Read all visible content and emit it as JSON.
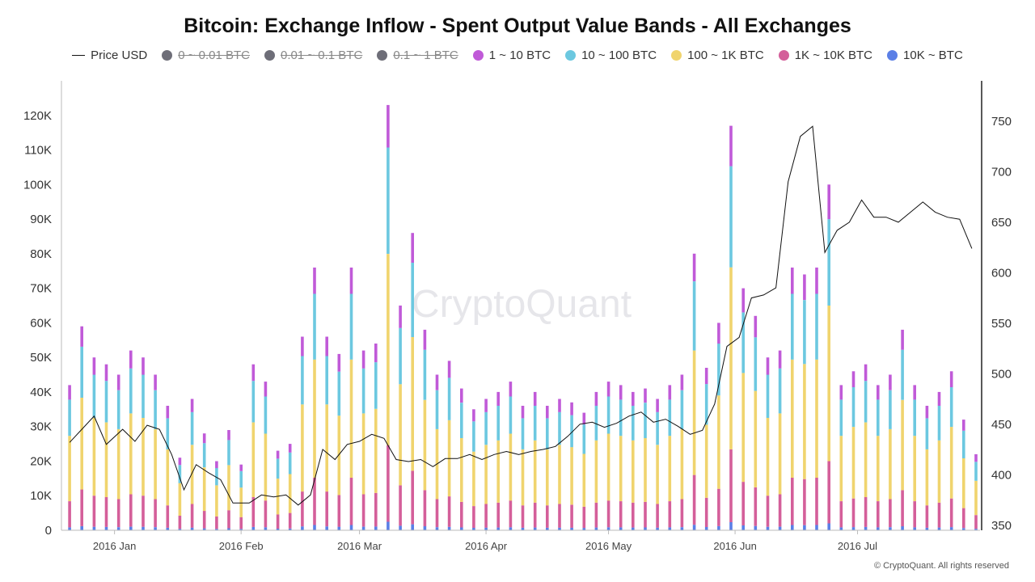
{
  "chart_data": {
    "type": "bar",
    "title": "Bitcoin: Exchange Inflow - Spent Output Value Bands - All Exchanges",
    "stacked": true,
    "watermark": "CryptoQuant",
    "copyright": "© CryptoQuant. All rights reserved",
    "legend_placement": "top",
    "grid": false,
    "x_range": [
      "2015-12-19",
      "2016-07-31"
    ],
    "x_ticks": [
      {
        "date": "2016-01-01",
        "label": "2016 Jan"
      },
      {
        "date": "2016-02-01",
        "label": "2016 Feb"
      },
      {
        "date": "2016-03-01",
        "label": "2016 Mar"
      },
      {
        "date": "2016-04-01",
        "label": "2016 Apr"
      },
      {
        "date": "2016-05-01",
        "label": "2016 May"
      },
      {
        "date": "2016-06-01",
        "label": "2016 Jun"
      },
      {
        "date": "2016-07-01",
        "label": "2016 Jul"
      }
    ],
    "y_left": {
      "range": [
        0,
        130000
      ],
      "ticks": [
        0,
        10000,
        20000,
        30000,
        40000,
        50000,
        60000,
        70000,
        80000,
        90000,
        100000,
        110000,
        120000
      ],
      "tick_labels": [
        "0",
        "10K",
        "20K",
        "30K",
        "40K",
        "50K",
        "60K",
        "70K",
        "80K",
        "90K",
        "100K",
        "110K",
        "120K"
      ]
    },
    "y_right": {
      "range": [
        345,
        790
      ],
      "ticks": [
        350,
        400,
        450,
        500,
        550,
        600,
        650,
        700,
        750
      ],
      "tick_labels": [
        "350",
        "400",
        "450",
        "500",
        "550",
        "600",
        "650",
        "700",
        "750"
      ]
    },
    "legend": [
      {
        "name": "Price USD",
        "kind": "line",
        "color": "#111111",
        "visible": true
      },
      {
        "name": "0 ~ 0.01 BTC",
        "kind": "dot",
        "color": "#6e6e78",
        "visible": false
      },
      {
        "name": "0.01 ~ 0.1 BTC",
        "kind": "dot",
        "color": "#6e6e78",
        "visible": false
      },
      {
        "name": "0.1 ~ 1 BTC",
        "kind": "dot",
        "color": "#6e6e78",
        "visible": false
      },
      {
        "name": "1 ~ 10 BTC",
        "kind": "dot",
        "color": "#c05ad8",
        "visible": true
      },
      {
        "name": "10 ~ 100 BTC",
        "kind": "dot",
        "color": "#6cc8e0",
        "visible": true
      },
      {
        "name": "100 ~ 1K BTC",
        "kind": "dot",
        "color": "#f0d46e",
        "visible": true
      },
      {
        "name": "1K ~ 10K BTC",
        "kind": "dot",
        "color": "#d45f9a",
        "visible": true
      },
      {
        "name": "10K ~ BTC",
        "kind": "dot",
        "color": "#5b7fe6",
        "visible": true
      }
    ],
    "totals": [
      {
        "date": "2015-12-21",
        "total": 42000
      },
      {
        "date": "2015-12-24",
        "total": 59000
      },
      {
        "date": "2015-12-27",
        "total": 50000
      },
      {
        "date": "2015-12-30",
        "total": 48000
      },
      {
        "date": "2016-01-02",
        "total": 45000
      },
      {
        "date": "2016-01-05",
        "total": 52000
      },
      {
        "date": "2016-01-08",
        "total": 50000
      },
      {
        "date": "2016-01-11",
        "total": 45000
      },
      {
        "date": "2016-01-14",
        "total": 36000
      },
      {
        "date": "2016-01-17",
        "total": 21000
      },
      {
        "date": "2016-01-20",
        "total": 38000
      },
      {
        "date": "2016-01-23",
        "total": 28000
      },
      {
        "date": "2016-01-26",
        "total": 20000
      },
      {
        "date": "2016-01-29",
        "total": 29000
      },
      {
        "date": "2016-02-01",
        "total": 19000
      },
      {
        "date": "2016-02-04",
        "total": 48000
      },
      {
        "date": "2016-02-07",
        "total": 43000
      },
      {
        "date": "2016-02-10",
        "total": 23000
      },
      {
        "date": "2016-02-13",
        "total": 25000
      },
      {
        "date": "2016-02-16",
        "total": 56000
      },
      {
        "date": "2016-02-19",
        "total": 76000
      },
      {
        "date": "2016-02-22",
        "total": 56000
      },
      {
        "date": "2016-02-25",
        "total": 51000
      },
      {
        "date": "2016-02-28",
        "total": 76000
      },
      {
        "date": "2016-03-02",
        "total": 52000
      },
      {
        "date": "2016-03-05",
        "total": 54000
      },
      {
        "date": "2016-03-08",
        "total": 123000
      },
      {
        "date": "2016-03-11",
        "total": 65000
      },
      {
        "date": "2016-03-14",
        "total": 86000
      },
      {
        "date": "2016-03-17",
        "total": 58000
      },
      {
        "date": "2016-03-20",
        "total": 45000
      },
      {
        "date": "2016-03-23",
        "total": 49000
      },
      {
        "date": "2016-03-26",
        "total": 41000
      },
      {
        "date": "2016-03-29",
        "total": 35000
      },
      {
        "date": "2016-04-01",
        "total": 38000
      },
      {
        "date": "2016-04-04",
        "total": 40000
      },
      {
        "date": "2016-04-07",
        "total": 43000
      },
      {
        "date": "2016-04-10",
        "total": 36000
      },
      {
        "date": "2016-04-13",
        "total": 40000
      },
      {
        "date": "2016-04-16",
        "total": 36000
      },
      {
        "date": "2016-04-19",
        "total": 38000
      },
      {
        "date": "2016-04-22",
        "total": 37000
      },
      {
        "date": "2016-04-25",
        "total": 34000
      },
      {
        "date": "2016-04-28",
        "total": 40000
      },
      {
        "date": "2016-05-01",
        "total": 43000
      },
      {
        "date": "2016-05-04",
        "total": 42000
      },
      {
        "date": "2016-05-07",
        "total": 40000
      },
      {
        "date": "2016-05-10",
        "total": 41000
      },
      {
        "date": "2016-05-13",
        "total": 38000
      },
      {
        "date": "2016-05-16",
        "total": 42000
      },
      {
        "date": "2016-05-19",
        "total": 45000
      },
      {
        "date": "2016-05-22",
        "total": 80000
      },
      {
        "date": "2016-05-25",
        "total": 47000
      },
      {
        "date": "2016-05-28",
        "total": 60000
      },
      {
        "date": "2016-05-31",
        "total": 117000
      },
      {
        "date": "2016-06-03",
        "total": 70000
      },
      {
        "date": "2016-06-06",
        "total": 62000
      },
      {
        "date": "2016-06-09",
        "total": 50000
      },
      {
        "date": "2016-06-12",
        "total": 52000
      },
      {
        "date": "2016-06-15",
        "total": 76000
      },
      {
        "date": "2016-06-18",
        "total": 74000
      },
      {
        "date": "2016-06-21",
        "total": 76000
      },
      {
        "date": "2016-06-24",
        "total": 100000
      },
      {
        "date": "2016-06-27",
        "total": 42000
      },
      {
        "date": "2016-06-30",
        "total": 46000
      },
      {
        "date": "2016-07-03",
        "total": 48000
      },
      {
        "date": "2016-07-06",
        "total": 42000
      },
      {
        "date": "2016-07-09",
        "total": 45000
      },
      {
        "date": "2016-07-12",
        "total": 58000
      },
      {
        "date": "2016-07-15",
        "total": 42000
      },
      {
        "date": "2016-07-18",
        "total": 36000
      },
      {
        "date": "2016-07-21",
        "total": 40000
      },
      {
        "date": "2016-07-24",
        "total": 46000
      },
      {
        "date": "2016-07-27",
        "total": 32000
      },
      {
        "date": "2016-07-30",
        "total": 22000
      }
    ],
    "band_share_order": [
      "10K ~ BTC",
      "1K ~ 10K BTC",
      "100 ~ 1K BTC",
      "10 ~ 100 BTC",
      "1 ~ 10 BTC"
    ],
    "band_share": [
      0.02,
      0.18,
      0.45,
      0.25,
      0.1
    ],
    "price": [
      {
        "date": "2015-12-21",
        "price": 432
      },
      {
        "date": "2015-12-24",
        "price": 445
      },
      {
        "date": "2015-12-27",
        "price": 458
      },
      {
        "date": "2015-12-30",
        "price": 430
      },
      {
        "date": "2016-01-03",
        "price": 445
      },
      {
        "date": "2016-01-06",
        "price": 433
      },
      {
        "date": "2016-01-09",
        "price": 449
      },
      {
        "date": "2016-01-12",
        "price": 445
      },
      {
        "date": "2016-01-15",
        "price": 420
      },
      {
        "date": "2016-01-18",
        "price": 385
      },
      {
        "date": "2016-01-21",
        "price": 410
      },
      {
        "date": "2016-01-24",
        "price": 402
      },
      {
        "date": "2016-01-27",
        "price": 395
      },
      {
        "date": "2016-01-30",
        "price": 372
      },
      {
        "date": "2016-02-03",
        "price": 372
      },
      {
        "date": "2016-02-06",
        "price": 380
      },
      {
        "date": "2016-02-09",
        "price": 378
      },
      {
        "date": "2016-02-12",
        "price": 380
      },
      {
        "date": "2016-02-15",
        "price": 370
      },
      {
        "date": "2016-02-18",
        "price": 380
      },
      {
        "date": "2016-02-21",
        "price": 425
      },
      {
        "date": "2016-02-24",
        "price": 415
      },
      {
        "date": "2016-02-27",
        "price": 430
      },
      {
        "date": "2016-03-01",
        "price": 433
      },
      {
        "date": "2016-03-04",
        "price": 440
      },
      {
        "date": "2016-03-07",
        "price": 436
      },
      {
        "date": "2016-03-10",
        "price": 415
      },
      {
        "date": "2016-03-13",
        "price": 413
      },
      {
        "date": "2016-03-16",
        "price": 415
      },
      {
        "date": "2016-03-19",
        "price": 408
      },
      {
        "date": "2016-03-22",
        "price": 416
      },
      {
        "date": "2016-03-25",
        "price": 416
      },
      {
        "date": "2016-03-28",
        "price": 420
      },
      {
        "date": "2016-03-31",
        "price": 415
      },
      {
        "date": "2016-04-03",
        "price": 420
      },
      {
        "date": "2016-04-06",
        "price": 423
      },
      {
        "date": "2016-04-09",
        "price": 420
      },
      {
        "date": "2016-04-12",
        "price": 423
      },
      {
        "date": "2016-04-15",
        "price": 425
      },
      {
        "date": "2016-04-18",
        "price": 428
      },
      {
        "date": "2016-04-21",
        "price": 438
      },
      {
        "date": "2016-04-24",
        "price": 450
      },
      {
        "date": "2016-04-27",
        "price": 452
      },
      {
        "date": "2016-04-30",
        "price": 447
      },
      {
        "date": "2016-05-03",
        "price": 451
      },
      {
        "date": "2016-05-06",
        "price": 458
      },
      {
        "date": "2016-05-09",
        "price": 462
      },
      {
        "date": "2016-05-12",
        "price": 452
      },
      {
        "date": "2016-05-15",
        "price": 455
      },
      {
        "date": "2016-05-18",
        "price": 448
      },
      {
        "date": "2016-05-21",
        "price": 440
      },
      {
        "date": "2016-05-24",
        "price": 444
      },
      {
        "date": "2016-05-27",
        "price": 470
      },
      {
        "date": "2016-05-30",
        "price": 527
      },
      {
        "date": "2016-06-02",
        "price": 536
      },
      {
        "date": "2016-06-05",
        "price": 575
      },
      {
        "date": "2016-06-08",
        "price": 578
      },
      {
        "date": "2016-06-11",
        "price": 585
      },
      {
        "date": "2016-06-14",
        "price": 690
      },
      {
        "date": "2016-06-17",
        "price": 735
      },
      {
        "date": "2016-06-20",
        "price": 745
      },
      {
        "date": "2016-06-23",
        "price": 620
      },
      {
        "date": "2016-06-26",
        "price": 642
      },
      {
        "date": "2016-06-29",
        "price": 650
      },
      {
        "date": "2016-07-02",
        "price": 672
      },
      {
        "date": "2016-07-05",
        "price": 655
      },
      {
        "date": "2016-07-08",
        "price": 655
      },
      {
        "date": "2016-07-11",
        "price": 650
      },
      {
        "date": "2016-07-14",
        "price": 660
      },
      {
        "date": "2016-07-17",
        "price": 670
      },
      {
        "date": "2016-07-20",
        "price": 660
      },
      {
        "date": "2016-07-23",
        "price": 655
      },
      {
        "date": "2016-07-26",
        "price": 653
      },
      {
        "date": "2016-07-29",
        "price": 624
      }
    ]
  }
}
